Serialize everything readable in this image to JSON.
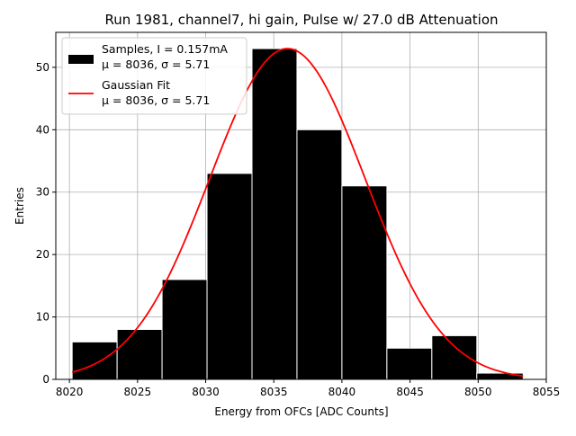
{
  "chart_data": {
    "type": "bar",
    "title": "Run 1981, channel7, hi gain, Pulse w/ 27.0 dB Attenuation",
    "xlabel": "Energy from OFCs [ADC Counts]",
    "ylabel": "Entries",
    "xlim": [
      8019,
      8055
    ],
    "ylim": [
      0,
      55.6
    ],
    "xticks": [
      8020,
      8025,
      8030,
      8035,
      8040,
      8045,
      8050,
      8055
    ],
    "yticks": [
      0,
      10,
      20,
      30,
      40,
      50
    ],
    "grid": true,
    "legend_position": "top-left",
    "bins": [
      {
        "left": 8020.2,
        "right": 8023.5,
        "count": 6
      },
      {
        "left": 8023.5,
        "right": 8026.8,
        "count": 8
      },
      {
        "left": 8026.8,
        "right": 8030.1,
        "count": 16
      },
      {
        "left": 8030.1,
        "right": 8033.4,
        "count": 33
      },
      {
        "left": 8033.4,
        "right": 8036.7,
        "count": 53
      },
      {
        "left": 8036.7,
        "right": 8040.0,
        "count": 40
      },
      {
        "left": 8040.0,
        "right": 8043.3,
        "count": 31
      },
      {
        "left": 8043.3,
        "right": 8046.6,
        "count": 5
      },
      {
        "left": 8046.6,
        "right": 8049.9,
        "count": 7
      },
      {
        "left": 8049.9,
        "right": 8053.3,
        "count": 1
      }
    ],
    "fit": {
      "amplitude": 53.0,
      "mu": 8036.0,
      "sigma": 5.71,
      "x_range": [
        8020.2,
        8053.3
      ]
    },
    "series": [
      {
        "kind": "histogram",
        "color": "#000000",
        "legend": [
          "Samples, I = 0.157mA",
          "μ = 8036, σ = 5.71"
        ]
      },
      {
        "kind": "line",
        "color": "#ff0000",
        "legend": [
          "Gaussian Fit",
          "μ = 8036, σ = 5.71"
        ]
      }
    ]
  }
}
